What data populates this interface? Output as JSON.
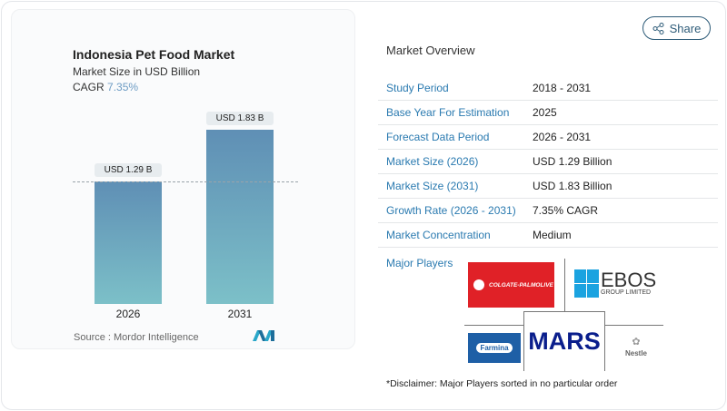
{
  "chart_data": {
    "type": "bar",
    "title": "Indonesia Pet Food Market",
    "subtitle": "Market Size in USD Billion",
    "cagr_label": "CAGR",
    "cagr_value": "7.35%",
    "categories": [
      "2026",
      "2031"
    ],
    "values": [
      1.29,
      1.83
    ],
    "data_labels": [
      "USD 1.29 B",
      "USD 1.83 B"
    ],
    "source": "Source :  Mordor Intelligence",
    "colors": {
      "bar_top": "#5f8fb5",
      "bar_bottom": "#7cc0c8"
    }
  },
  "share_label": "Share",
  "overview": {
    "title": "Market Overview",
    "rows": [
      {
        "label": "Study Period",
        "value": "2018 - 2031"
      },
      {
        "label": "Base Year For Estimation",
        "value": "2025"
      },
      {
        "label": "Forecast Data Period",
        "value": "2026 - 2031"
      },
      {
        "label": "Market Size (2026)",
        "value": "USD 1.29 Billion"
      },
      {
        "label": "Market Size (2031)",
        "value": "USD 1.83 Billion"
      },
      {
        "label": "Growth Rate (2026 - 2031)",
        "value": "7.35% CAGR"
      },
      {
        "label": "Market Concentration",
        "value": "Medium"
      }
    ]
  },
  "major_players": {
    "title": "Major Players",
    "logos": [
      "COLGATE-PALMOLIVE",
      "EBOS",
      "GROUP LIMITED",
      "MARS",
      "Farmina",
      "Nestle"
    ],
    "disclaimer": "*Disclaimer: Major Players sorted in no particular order"
  }
}
